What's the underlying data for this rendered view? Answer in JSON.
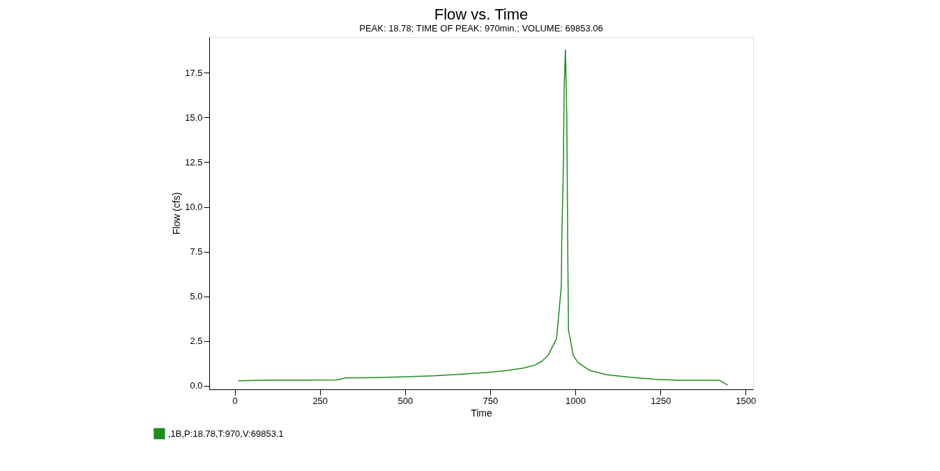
{
  "chart_data": {
    "type": "line",
    "title": "Flow vs. Time",
    "subtitle": "PEAK: 18.78;  TIME OF PEAK: 970min.;  VOLUME: 69853.06",
    "xlabel": "Time",
    "ylabel": "Flow (cfs)",
    "xlim": [
      -75,
      1522
    ],
    "ylim": [
      -0.2,
      19.5
    ],
    "xticks": [
      0,
      250,
      500,
      750,
      1000,
      1250,
      1500
    ],
    "yticks": [
      {
        "value": 0,
        "label": "0.0"
      },
      2.5,
      {
        "value": 5,
        "label": "5.0"
      },
      7.5,
      {
        "value": 10,
        "label": "10.0"
      },
      12.5,
      {
        "value": 15,
        "label": "15.0"
      },
      17.5
    ],
    "grid": false,
    "legend": "bottom left",
    "marker": "none",
    "line_style": "solid",
    "series": [
      {
        "name": ",1B,P:18.78,T:970,V:69853.1",
        "color": "#1e8c1e",
        "x": [
          10,
          100,
          200,
          300,
          326,
          400,
          499,
          588,
          665,
          747,
          800,
          850,
          882,
          902,
          920,
          945,
          959,
          960,
          965,
          967,
          971,
          975,
          978,
          980,
          994,
          1008,
          1043,
          1092,
          1163,
          1233,
          1304,
          1423,
          1447
        ],
        "values": [
          0.28,
          0.32,
          0.32,
          0.33,
          0.44,
          0.45,
          0.5,
          0.56,
          0.65,
          0.76,
          0.85,
          1.0,
          1.16,
          1.37,
          1.7,
          2.64,
          5.6,
          8.0,
          12.3,
          16.6,
          18.78,
          14.9,
          7.06,
          3.1,
          1.7,
          1.3,
          0.85,
          0.62,
          0.47,
          0.37,
          0.31,
          0.31,
          0.04
        ]
      }
    ]
  }
}
